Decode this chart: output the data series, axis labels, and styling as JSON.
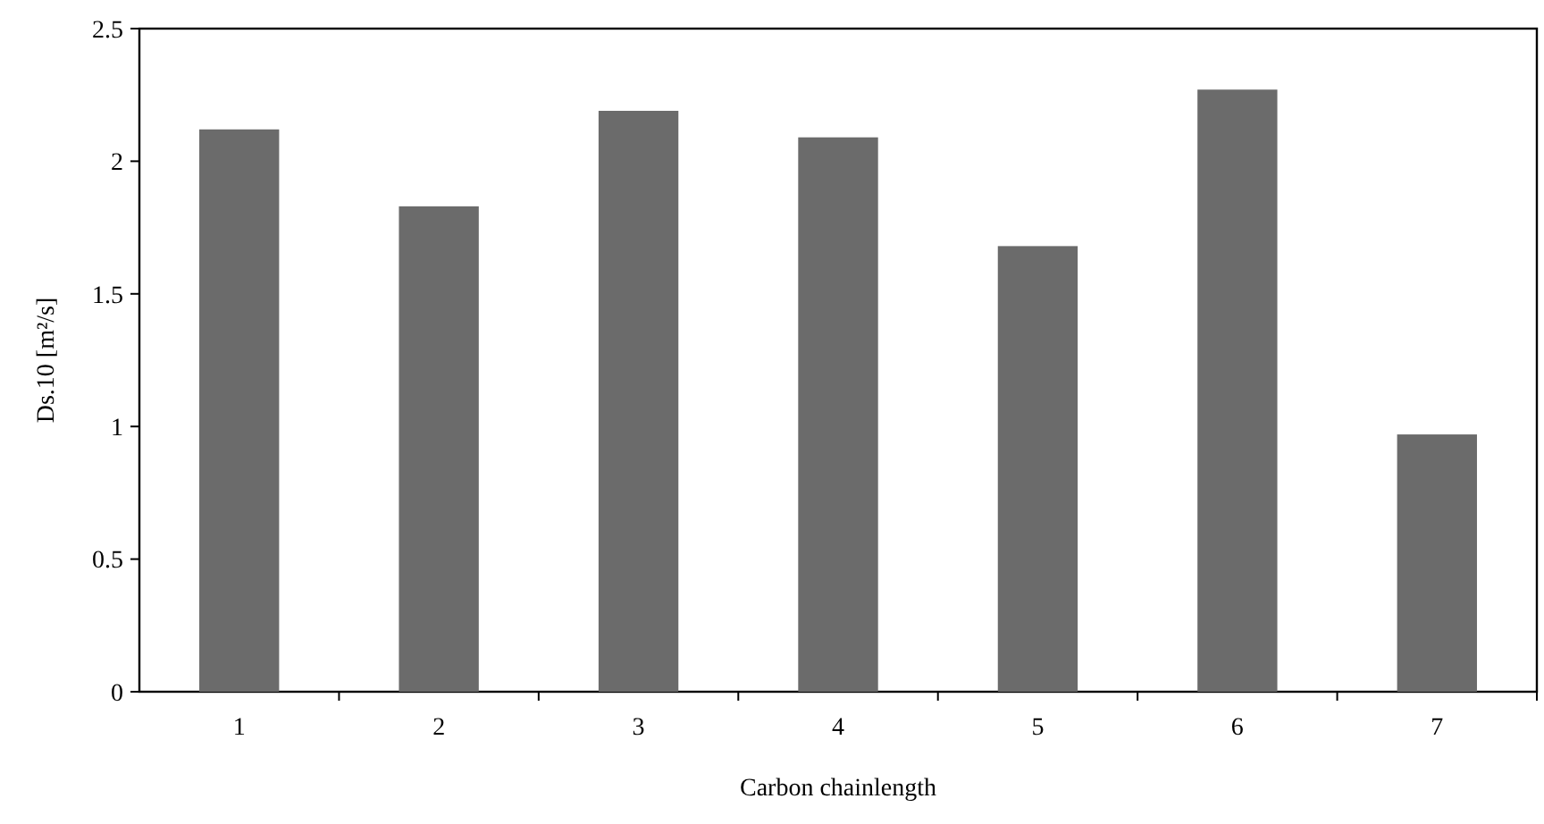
{
  "chart_data": {
    "type": "bar",
    "xlabel": "Carbon chainlength",
    "ylabel": "Ds.10  [m²/s]",
    "categories": [
      "1",
      "2",
      "3",
      "4",
      "5",
      "6",
      "7"
    ],
    "values": [
      2.12,
      1.83,
      2.19,
      2.09,
      1.68,
      2.27,
      0.97
    ],
    "color": "#6b6b6b",
    "ylim": [
      0,
      2.5
    ],
    "yticks": [
      0,
      0.5,
      1,
      1.5,
      2,
      2.5
    ],
    "grid": false
  }
}
